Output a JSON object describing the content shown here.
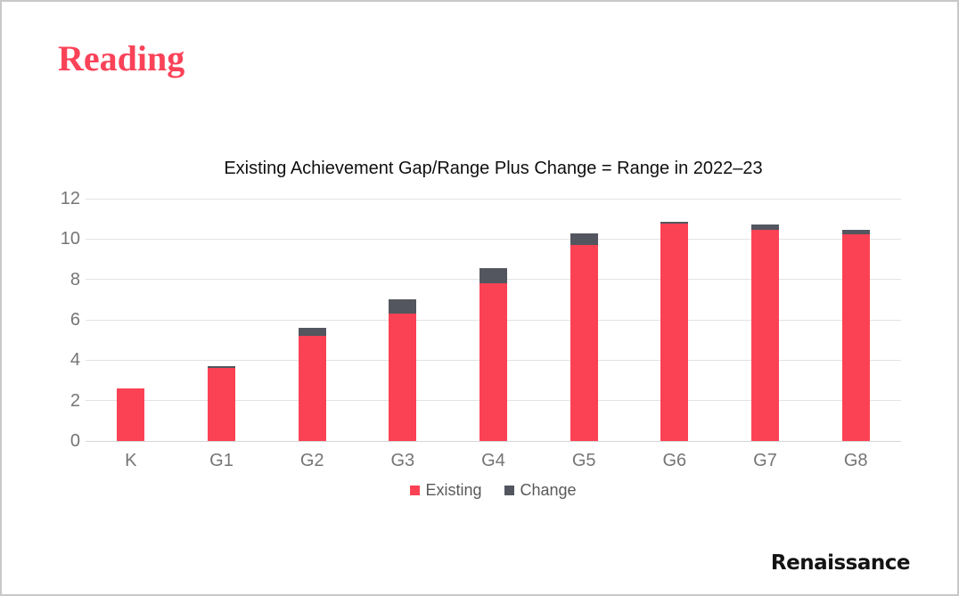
{
  "page": {
    "heading": "Reading",
    "brand": "Renaissance",
    "border_color": "#c8c8c8"
  },
  "colors": {
    "accent_red": "#fb4254",
    "slate": "#53565e",
    "gridline": "#e3e3e3",
    "axis_text": "#757575",
    "legend_text": "#595959"
  },
  "chart_data": {
    "type": "bar",
    "stacked": true,
    "title": "Existing Achievement Gap/Range Plus Change = Range in 2022–23",
    "categories": [
      "K",
      "G1",
      "G2",
      "G3",
      "G4",
      "G5",
      "G6",
      "G7",
      "G8"
    ],
    "series": [
      {
        "name": "Existing",
        "color": "#fb4254",
        "values": [
          2.6,
          3.6,
          5.2,
          6.3,
          7.8,
          9.7,
          10.75,
          10.45,
          10.25
        ]
      },
      {
        "name": "Change",
        "color": "#53565e",
        "values": [
          0,
          0.1,
          0.4,
          0.7,
          0.75,
          0.6,
          0.1,
          0.25,
          0.2
        ]
      }
    ],
    "totals": [
      2.6,
      3.7,
      5.6,
      7.0,
      8.55,
      10.3,
      10.85,
      10.7,
      10.45
    ],
    "xlabel": "",
    "ylabel": "",
    "ylim": [
      0,
      12
    ],
    "ytick_step": 2,
    "grid": true,
    "legend_position": "bottom"
  }
}
